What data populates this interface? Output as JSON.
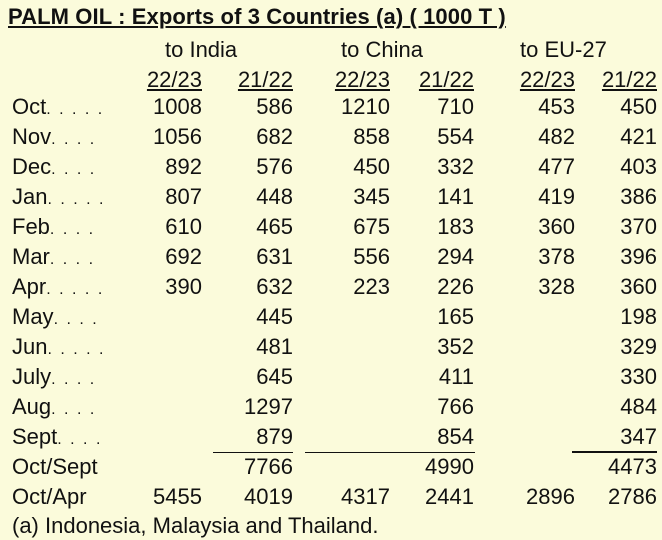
{
  "title": "PALM OIL : Exports of 3 Countries (a)  ( 1000 T )",
  "groups": [
    "to India",
    "to China",
    "to EU-27"
  ],
  "subheaders": [
    "22/23",
    "21/22",
    "22/23",
    "21/22",
    "22/23",
    "21/22"
  ],
  "rows": [
    {
      "label": "Oct",
      "dots": ". . . . .",
      "values": [
        "1008",
        "586",
        "1210",
        "710",
        "453",
        "450"
      ]
    },
    {
      "label": "Nov",
      "dots": ". . . .",
      "values": [
        "1056",
        "682",
        "858",
        "554",
        "482",
        "421"
      ]
    },
    {
      "label": "Dec",
      "dots": ". . . .",
      "values": [
        "892",
        "576",
        "450",
        "332",
        "477",
        "403"
      ]
    },
    {
      "label": "Jan",
      "dots": ". . . . .",
      "values": [
        "807",
        "448",
        "345",
        "141",
        "419",
        "386"
      ]
    },
    {
      "label": "Feb",
      "dots": ". . . .",
      "values": [
        "610",
        "465",
        "675",
        "183",
        "360",
        "370"
      ]
    },
    {
      "label": "Mar",
      "dots": ". . . .",
      "values": [
        "692",
        "631",
        "556",
        "294",
        "378",
        "396"
      ]
    },
    {
      "label": "Apr",
      "dots": ". . . . .",
      "values": [
        "390",
        "632",
        "223",
        "226",
        "328",
        "360"
      ]
    },
    {
      "label": "May",
      "dots": ". . . .",
      "values": [
        "",
        "445",
        "",
        "165",
        "",
        "198"
      ]
    },
    {
      "label": "Jun",
      "dots": ". . . . .",
      "values": [
        "",
        "481",
        "",
        "352",
        "",
        "329"
      ]
    },
    {
      "label": "July",
      "dots": ". . . .",
      "values": [
        "",
        "645",
        "",
        "411",
        "",
        "330"
      ]
    },
    {
      "label": "Aug",
      "dots": ". . . .",
      "values": [
        "",
        "1297",
        "",
        "766",
        "",
        "484"
      ]
    },
    {
      "label": "Sept",
      "dots": ". . . .",
      "values": [
        "",
        "879",
        "",
        "854",
        "",
        "347"
      ]
    },
    {
      "label": "Oct/Sept",
      "dots": "",
      "values": [
        "",
        "7766",
        "",
        "4990",
        "",
        "4473"
      ]
    },
    {
      "label": "Oct/Apr",
      "dots": "",
      "values": [
        "5455",
        "4019",
        "4317",
        "2441",
        "2896",
        "2786"
      ]
    }
  ],
  "footnote": "(a) Indonesia, Malaysia and Thailand."
}
